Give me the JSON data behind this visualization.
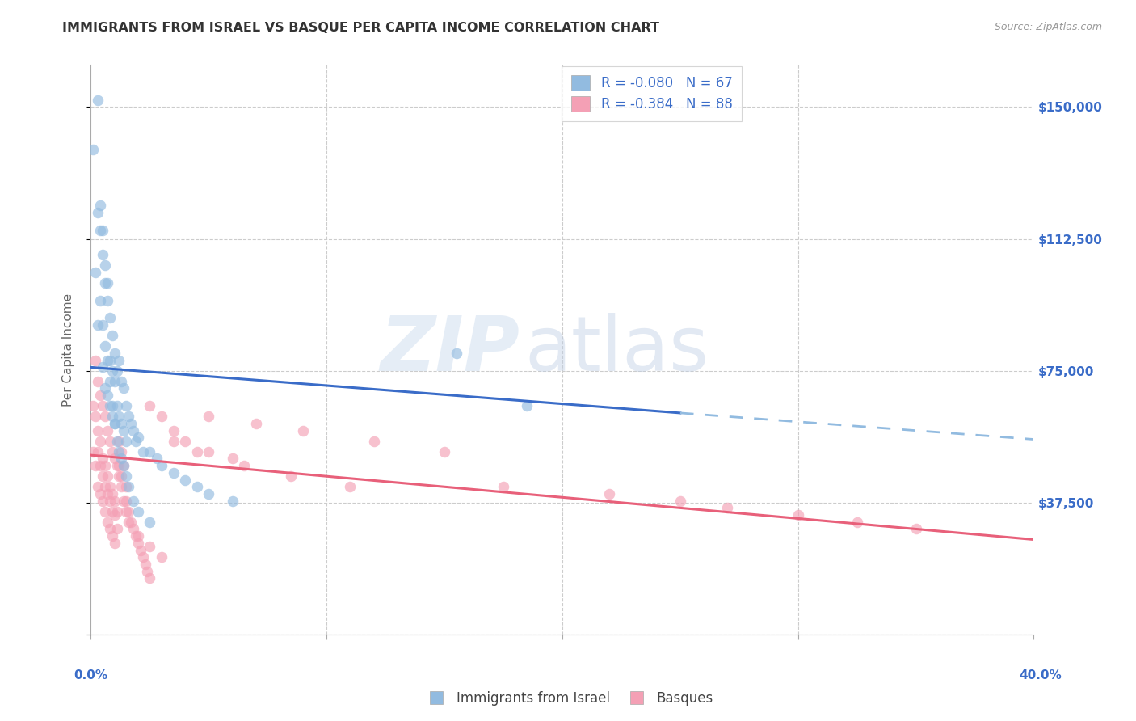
{
  "title": "IMMIGRANTS FROM ISRAEL VS BASQUE PER CAPITA INCOME CORRELATION CHART",
  "source": "Source: ZipAtlas.com",
  "ylabel": "Per Capita Income",
  "yticks": [
    0,
    37500,
    75000,
    112500,
    150000
  ],
  "ytick_labels": [
    "",
    "$37,500",
    "$75,000",
    "$112,500",
    "$150,000"
  ],
  "xlim": [
    0.0,
    0.4
  ],
  "ylim": [
    0,
    162000
  ],
  "legend1_label": "R = -0.080   N = 67",
  "legend2_label": "R = -0.384   N = 88",
  "bottom_legend1": "Immigrants from Israel",
  "bottom_legend2": "Basques",
  "color_blue": "#92BBE0",
  "color_pink": "#F4A0B5",
  "line_blue_solid": "#3A6CC8",
  "line_pink_solid": "#E8607A",
  "line_blue_dashed": "#92BBE0",
  "watermark": "ZIPatlas",
  "title_color": "#333333",
  "axis_label_color": "#666666",
  "tick_color_right": "#3A6CC8",
  "grid_color": "#CCCCCC",
  "blue_line_x0": 0.0,
  "blue_line_y0": 76000,
  "blue_line_x1": 0.25,
  "blue_line_y1": 63000,
  "blue_line_x2": 0.4,
  "blue_line_y2": 55500,
  "pink_line_x0": 0.0,
  "pink_line_y0": 51000,
  "pink_line_x1": 0.4,
  "pink_line_y1": 27000,
  "blue_scatter_x": [
    0.001,
    0.002,
    0.003,
    0.003,
    0.004,
    0.004,
    0.005,
    0.005,
    0.005,
    0.006,
    0.006,
    0.006,
    0.007,
    0.007,
    0.007,
    0.008,
    0.008,
    0.008,
    0.009,
    0.009,
    0.009,
    0.01,
    0.01,
    0.01,
    0.011,
    0.011,
    0.012,
    0.012,
    0.013,
    0.013,
    0.014,
    0.014,
    0.015,
    0.015,
    0.016,
    0.017,
    0.018,
    0.019,
    0.02,
    0.022,
    0.025,
    0.028,
    0.03,
    0.035,
    0.04,
    0.045,
    0.05,
    0.06,
    0.003,
    0.004,
    0.005,
    0.006,
    0.007,
    0.008,
    0.009,
    0.01,
    0.011,
    0.012,
    0.013,
    0.014,
    0.015,
    0.016,
    0.018,
    0.02,
    0.025,
    0.155,
    0.185
  ],
  "blue_scatter_y": [
    138000,
    103000,
    120000,
    88000,
    115000,
    95000,
    108000,
    88000,
    76000,
    100000,
    82000,
    70000,
    95000,
    78000,
    68000,
    90000,
    78000,
    65000,
    85000,
    75000,
    62000,
    80000,
    72000,
    60000,
    75000,
    65000,
    78000,
    62000,
    72000,
    60000,
    70000,
    58000,
    65000,
    55000,
    62000,
    60000,
    58000,
    55000,
    56000,
    52000,
    52000,
    50000,
    48000,
    46000,
    44000,
    42000,
    40000,
    38000,
    152000,
    122000,
    115000,
    105000,
    100000,
    72000,
    65000,
    60000,
    55000,
    52000,
    50000,
    48000,
    45000,
    42000,
    38000,
    35000,
    32000,
    80000,
    65000
  ],
  "pink_scatter_x": [
    0.001,
    0.001,
    0.002,
    0.002,
    0.003,
    0.003,
    0.003,
    0.004,
    0.004,
    0.004,
    0.005,
    0.005,
    0.005,
    0.006,
    0.006,
    0.006,
    0.007,
    0.007,
    0.007,
    0.008,
    0.008,
    0.008,
    0.009,
    0.009,
    0.009,
    0.01,
    0.01,
    0.01,
    0.011,
    0.011,
    0.012,
    0.012,
    0.013,
    0.013,
    0.014,
    0.015,
    0.015,
    0.016,
    0.017,
    0.018,
    0.019,
    0.02,
    0.021,
    0.022,
    0.023,
    0.024,
    0.025,
    0.03,
    0.035,
    0.04,
    0.05,
    0.06,
    0.002,
    0.003,
    0.004,
    0.005,
    0.006,
    0.007,
    0.008,
    0.009,
    0.01,
    0.011,
    0.012,
    0.013,
    0.014,
    0.015,
    0.016,
    0.02,
    0.025,
    0.03,
    0.175,
    0.22,
    0.25,
    0.27,
    0.3,
    0.325,
    0.35,
    0.025,
    0.05,
    0.07,
    0.09,
    0.12,
    0.15,
    0.035,
    0.045,
    0.065,
    0.085,
    0.11
  ],
  "pink_scatter_y": [
    65000,
    52000,
    62000,
    48000,
    58000,
    52000,
    42000,
    55000,
    48000,
    40000,
    50000,
    45000,
    38000,
    48000,
    42000,
    35000,
    45000,
    40000,
    32000,
    42000,
    38000,
    30000,
    40000,
    35000,
    28000,
    38000,
    34000,
    26000,
    35000,
    30000,
    55000,
    48000,
    52000,
    45000,
    48000,
    42000,
    38000,
    35000,
    32000,
    30000,
    28000,
    26000,
    24000,
    22000,
    20000,
    18000,
    16000,
    62000,
    58000,
    55000,
    52000,
    50000,
    78000,
    72000,
    68000,
    65000,
    62000,
    58000,
    55000,
    52000,
    50000,
    48000,
    45000,
    42000,
    38000,
    35000,
    32000,
    28000,
    25000,
    22000,
    42000,
    40000,
    38000,
    36000,
    34000,
    32000,
    30000,
    65000,
    62000,
    60000,
    58000,
    55000,
    52000,
    55000,
    52000,
    48000,
    45000,
    42000
  ]
}
